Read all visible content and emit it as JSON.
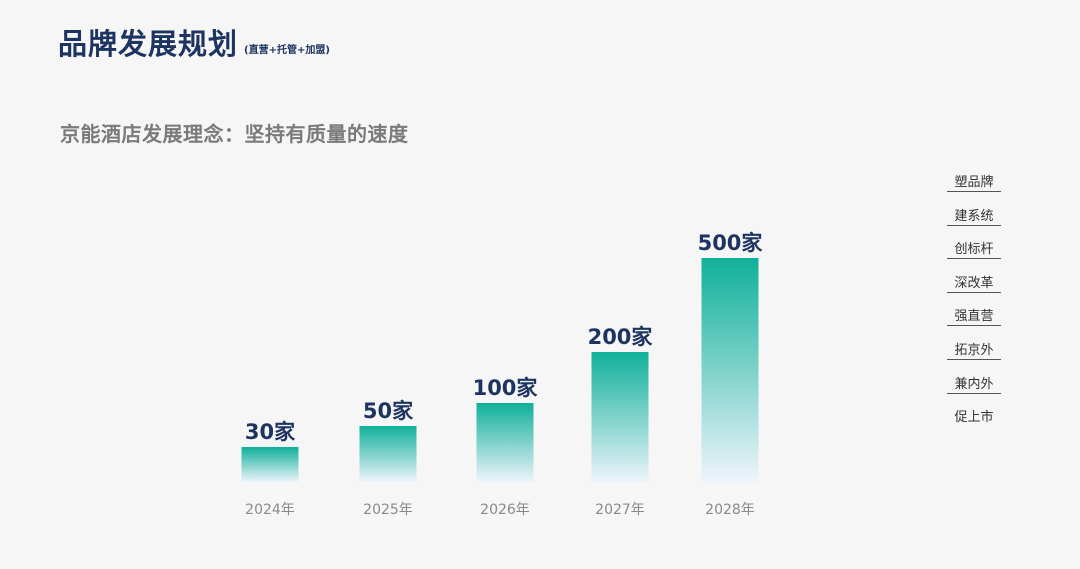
{
  "header": {
    "title": "品牌发展规划",
    "note": "(直营+托管+加盟)"
  },
  "subtitle": "京能酒店发展理念：坚持有质量的速度",
  "side_list": [
    "塑品牌",
    "建系统",
    "创标杆",
    "深改革",
    "强直营",
    "拓京外",
    "兼内外",
    "促上市"
  ],
  "colors": {
    "title": "#1d3461",
    "bar_top": "#0fb09a",
    "bar_bottom": "#eef4fb",
    "background": "#f6f6f6"
  },
  "chart_data": {
    "type": "bar",
    "categories": [
      "2024年",
      "2025年",
      "2026年",
      "2027年",
      "2028年"
    ],
    "values": [
      30,
      50,
      100,
      200,
      500
    ],
    "value_labels": [
      "30家",
      "50家",
      "100家",
      "200家",
      "500家"
    ],
    "title": "",
    "xlabel": "",
    "ylabel": "",
    "grid": false,
    "legend": "none"
  }
}
